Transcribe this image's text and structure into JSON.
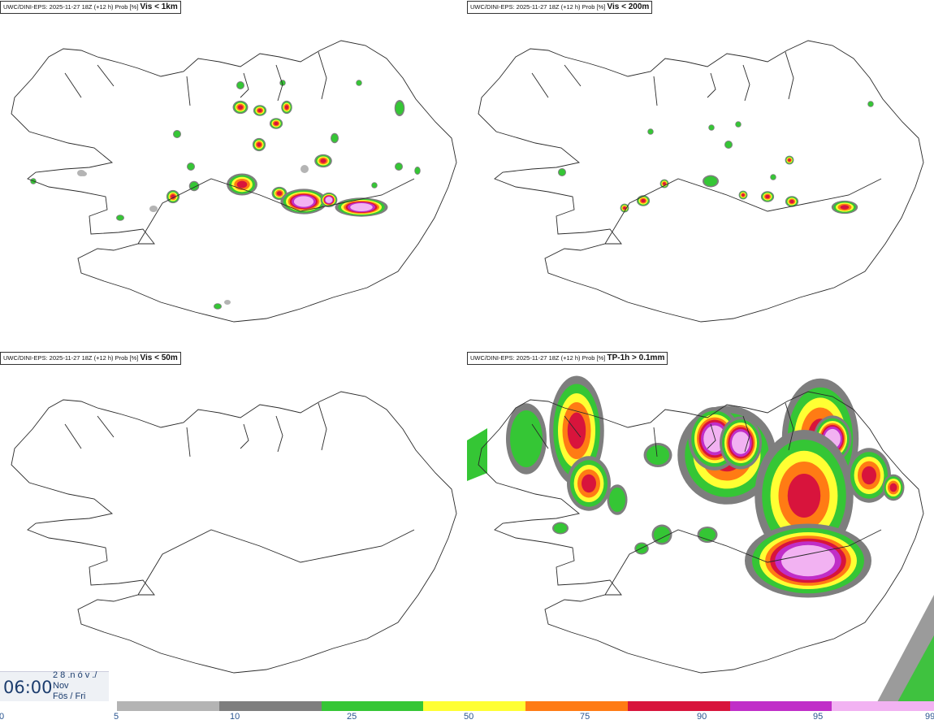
{
  "panels": [
    {
      "model": "UWC/DINI-EPS",
      "run": "2025-11-27 18Z (+12 h) Prob [%]",
      "variable": "Vis < 1km"
    },
    {
      "model": "UWC/DINI-EPS",
      "run": "2025-11-27 18Z (+12 h) Prob [%]",
      "variable": "Vis < 200m"
    },
    {
      "model": "UWC/DINI-EPS",
      "run": "2025-11-27 18Z (+12 h) Prob [%]",
      "variable": "Vis < 50m"
    },
    {
      "model": "UWC/DINI-EPS",
      "run": "2025-11-27 18Z (+12 h) Prob [%]",
      "variable": "TP-1h > 0.1mm"
    }
  ],
  "valid_time": {
    "time": "06:00",
    "day": "2 8 .n ó v ./",
    "month": "Nov",
    "weekday": "Fös / Fri"
  },
  "legend": {
    "ticks": [
      "0",
      "5",
      "10",
      "25",
      "50",
      "75",
      "90",
      "95",
      "99"
    ],
    "colors": [
      "#b4b4b4",
      "#7e7e7e",
      "#35c635",
      "#ffff33",
      "#ff7b14",
      "#d8143c",
      "#c02ec8",
      "#f2b2f2"
    ]
  },
  "map_features": {
    "p0": [
      [
        "a",
        100,
        213,
        5,
        4
      ],
      [
        "a",
        103,
        214,
        4,
        3
      ],
      [
        "b",
        41,
        223,
        3,
        3
      ],
      [
        "b",
        148,
        268,
        4,
        3
      ],
      [
        "a",
        189,
        257,
        5,
        4
      ],
      [
        "b",
        239,
        229,
        5,
        5
      ],
      [
        "c",
        298,
        227,
        14,
        10
      ],
      [
        "c",
        344,
        238,
        7,
        6
      ],
      [
        "d",
        374,
        248,
        22,
        12
      ],
      [
        "d",
        445,
        255,
        25,
        9
      ],
      [
        "d",
        405,
        246,
        8,
        7
      ],
      [
        "c",
        398,
        198,
        8,
        6
      ],
      [
        "c",
        296,
        132,
        7,
        6
      ],
      [
        "c",
        320,
        136,
        6,
        5
      ],
      [
        "c",
        340,
        152,
        6,
        5
      ],
      [
        "c",
        319,
        178,
        6,
        6
      ],
      [
        "b",
        412,
        170,
        4,
        5
      ],
      [
        "b",
        492,
        133,
        5,
        8
      ],
      [
        "b",
        491,
        205,
        4,
        4
      ],
      [
        "b",
        514,
        210,
        3,
        4
      ],
      [
        "b",
        268,
        377,
        4,
        3
      ],
      [
        "a",
        280,
        372,
        4,
        3
      ],
      [
        "c",
        213,
        242,
        6,
        6
      ],
      [
        "b",
        296,
        105,
        4,
        4
      ],
      [
        "b",
        348,
        102,
        3,
        3
      ],
      [
        "b",
        442,
        102,
        3,
        3
      ],
      [
        "b",
        461,
        228,
        3,
        3
      ],
      [
        "b",
        218,
        165,
        4,
        4
      ],
      [
        "c",
        353,
        132,
        5,
        6
      ],
      [
        "b",
        235,
        205,
        4,
        4
      ],
      [
        "a",
        375,
        208,
        5,
        5
      ]
    ],
    "p1": [
      [
        "b",
        875,
        223,
        8,
        6
      ],
      [
        "c",
        915,
        240,
        4,
        4
      ],
      [
        "c",
        945,
        242,
        6,
        5
      ],
      [
        "c",
        975,
        248,
        6,
        5
      ],
      [
        "c",
        1040,
        255,
        12,
        6
      ],
      [
        "c",
        818,
        226,
        4,
        4
      ],
      [
        "c",
        792,
        247,
        6,
        5
      ],
      [
        "c",
        769,
        256,
        4,
        4
      ],
      [
        "c",
        972,
        197,
        4,
        4
      ],
      [
        "b",
        952,
        218,
        3,
        3
      ],
      [
        "b",
        897,
        178,
        4,
        4
      ],
      [
        "b",
        1072,
        128,
        3,
        3
      ],
      [
        "b",
        909,
        153,
        3,
        3
      ],
      [
        "b",
        876,
        157,
        3,
        3
      ],
      [
        "b",
        801,
        162,
        3,
        3
      ],
      [
        "b",
        692,
        212,
        4,
        4
      ]
    ],
    "p2": [],
    "p3": [
      [
        "b",
        648,
        540,
        20,
        35
      ],
      [
        "c",
        710,
        530,
        25,
        50
      ],
      [
        "b",
        810,
        560,
        14,
        12
      ],
      [
        "c",
        895,
        560,
        45,
        45
      ],
      [
        "d",
        880,
        540,
        25,
        30
      ],
      [
        "d",
        912,
        545,
        20,
        25
      ],
      [
        "c",
        1010,
        540,
        35,
        55
      ],
      [
        "d",
        1025,
        540,
        18,
        22
      ],
      [
        "c",
        990,
        610,
        45,
        60
      ],
      [
        "d",
        995,
        690,
        60,
        35
      ],
      [
        "c",
        1070,
        585,
        20,
        25
      ],
      [
        "b",
        871,
        658,
        10,
        8
      ],
      [
        "b",
        815,
        658,
        10,
        10
      ],
      [
        "b",
        790,
        675,
        7,
        6
      ],
      [
        "c",
        725,
        595,
        20,
        25
      ],
      [
        "b",
        690,
        650,
        8,
        6
      ],
      [
        "c",
        1100,
        600,
        10,
        12
      ],
      [
        "b",
        760,
        615,
        10,
        15
      ]
    ]
  }
}
